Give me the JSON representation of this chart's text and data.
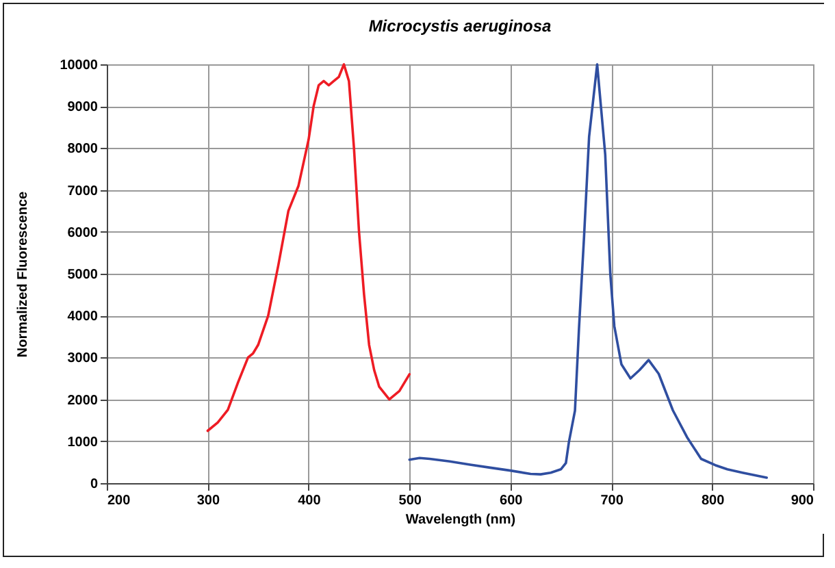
{
  "chart_data": {
    "type": "line",
    "title": "Microcystis aeruginosa",
    "xlabel": "Wavelength (nm)",
    "ylabel": "Normalized Fluorescence",
    "xlim": [
      200,
      900
    ],
    "xticks": [
      200,
      300,
      400,
      500,
      600,
      700,
      800,
      900
    ],
    "ylim": [
      0,
      10000
    ],
    "yticks": [
      0,
      1000,
      2000,
      3000,
      4000,
      5000,
      6000,
      7000,
      8000,
      9000,
      10000
    ],
    "grid": true,
    "series": [
      {
        "color": "#ee1c24",
        "x": [
          300,
          310,
          320,
          330,
          340,
          345,
          350,
          360,
          370,
          380,
          390,
          400,
          405,
          410,
          415,
          420,
          425,
          430,
          435,
          440,
          445,
          450,
          455,
          460,
          465,
          470,
          480,
          490,
          500
        ],
        "values": [
          1250,
          1450,
          1750,
          2400,
          3000,
          3100,
          3300,
          4000,
          5200,
          6500,
          7100,
          8200,
          9000,
          9500,
          9600,
          9500,
          9600,
          9700,
          10000,
          9600,
          8000,
          6000,
          4500,
          3300,
          2700,
          2300,
          2000,
          2200,
          2600
        ]
      },
      {
        "color": "#2f4ea0",
        "x": [
          500,
          510,
          520,
          540,
          560,
          580,
          600,
          620,
          630,
          640,
          650,
          655,
          658,
          664,
          668,
          673,
          678,
          686,
          694,
          699,
          703,
          710,
          719,
          728,
          737,
          747,
          761,
          775,
          789,
          803,
          815,
          830,
          854
        ],
        "values": [
          560,
          600,
          580,
          520,
          440,
          370,
          300,
          220,
          210,
          250,
          330,
          480,
          980,
          1730,
          3700,
          5880,
          8270,
          10000,
          7840,
          5000,
          3750,
          2840,
          2500,
          2700,
          2940,
          2610,
          1740,
          1100,
          580,
          430,
          330,
          250,
          130
        ]
      }
    ]
  }
}
